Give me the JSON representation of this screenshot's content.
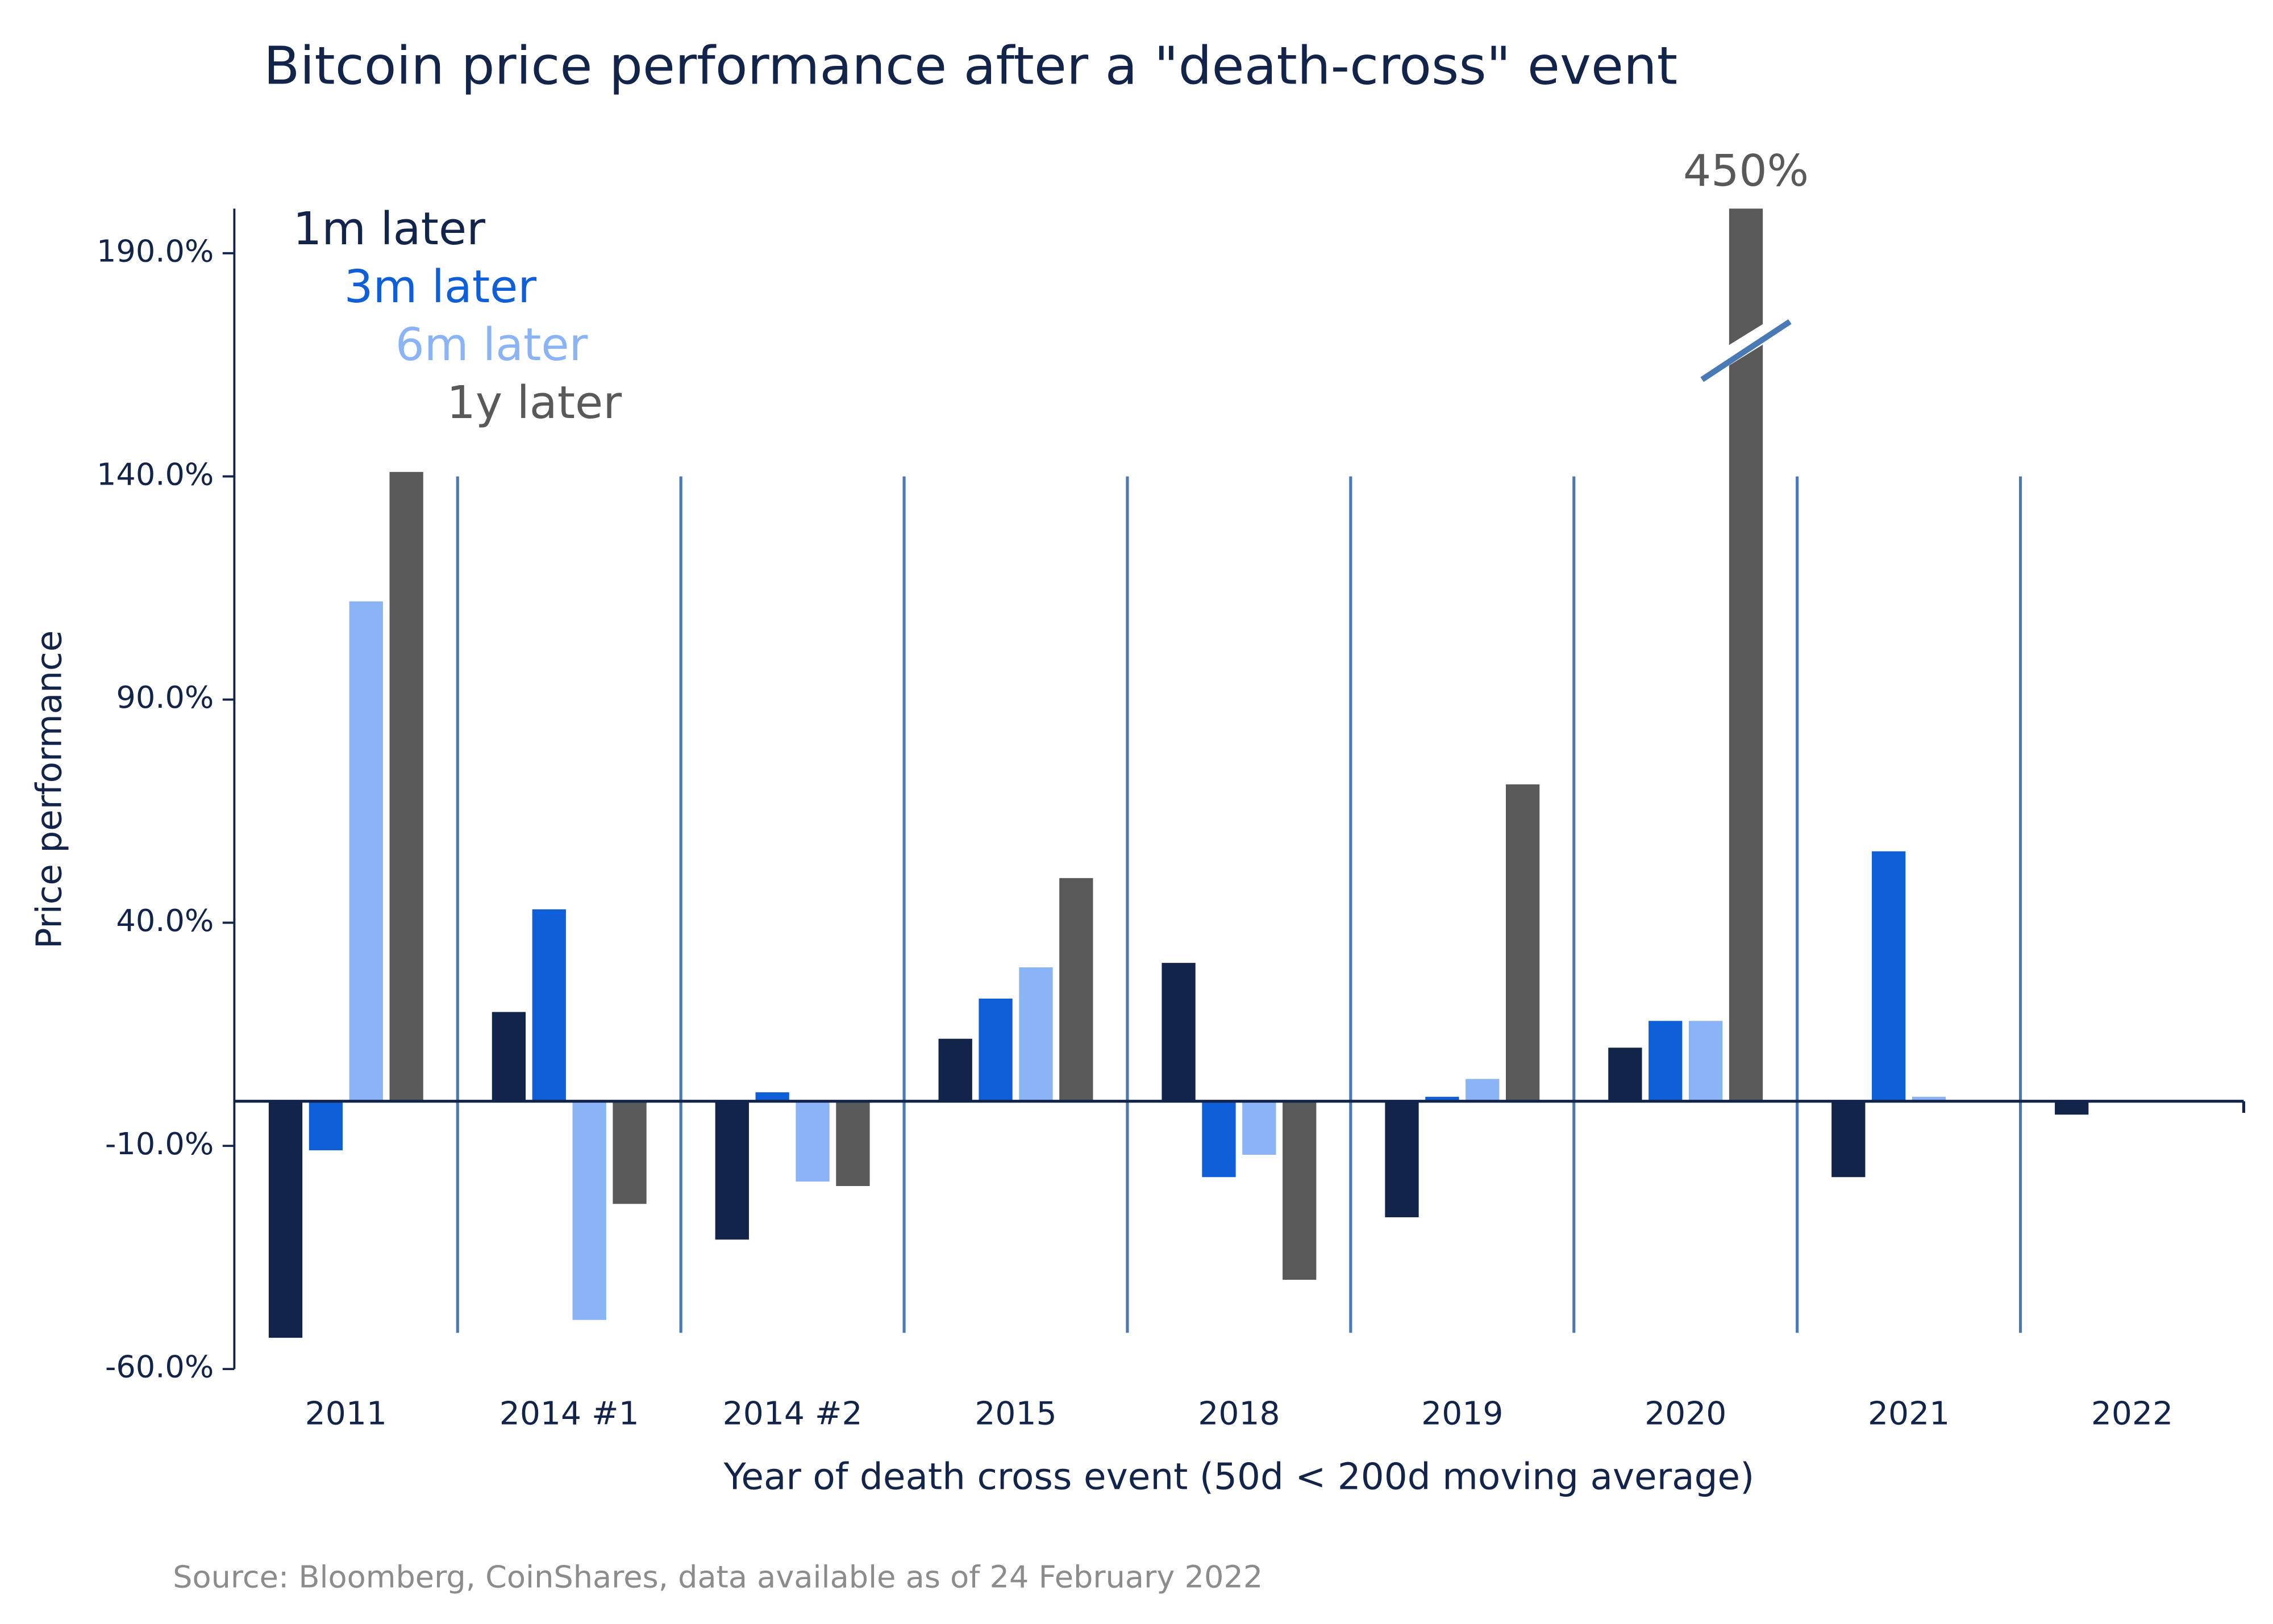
{
  "chart_data": {
    "type": "bar",
    "title": "Bitcoin price performance after a \"death-cross\" event",
    "x_label": "Year of death cross event (50d < 200d moving average)",
    "y_label": "Price performance",
    "source": "Source: Bloomberg, CoinShares, data available as of 24 February 2022",
    "categories": [
      "2011",
      "2014 #1",
      "2014 #2",
      "2015",
      "2018",
      "2019",
      "2020",
      "2021",
      "2022"
    ],
    "series": [
      {
        "name": "1m later",
        "color": "#13244a",
        "values": [
          -53,
          20,
          -31,
          14,
          31,
          -26,
          12,
          -17,
          -3
        ]
      },
      {
        "name": "3m later",
        "color": "#0f5fd8",
        "values": [
          -11,
          43,
          2,
          23,
          -17,
          1,
          18,
          56,
          null
        ]
      },
      {
        "name": "6m later",
        "color": "#8ab4f5",
        "values": [
          112,
          -49,
          -18,
          30,
          -12,
          5,
          18,
          1,
          null
        ]
      },
      {
        "name": "1y later",
        "color": "#595959",
        "values": [
          141,
          -23,
          -19,
          50,
          -40,
          71,
          450,
          null,
          null
        ],
        "value_labels": [
          null,
          null,
          null,
          null,
          null,
          null,
          "450%",
          null,
          null
        ]
      }
    ],
    "ylim": [
      -60,
      200
    ],
    "yticks": [
      {
        "value": -60,
        "label": "-60.0%"
      },
      {
        "value": -10,
        "label": "-10.0%"
      },
      {
        "value": 40,
        "label": "40.0%"
      },
      {
        "value": 90,
        "label": "90.0%"
      },
      {
        "value": 140,
        "label": "140.0%"
      },
      {
        "value": 190,
        "label": "190.0%"
      }
    ],
    "separator_color": "#4a7ab5"
  }
}
